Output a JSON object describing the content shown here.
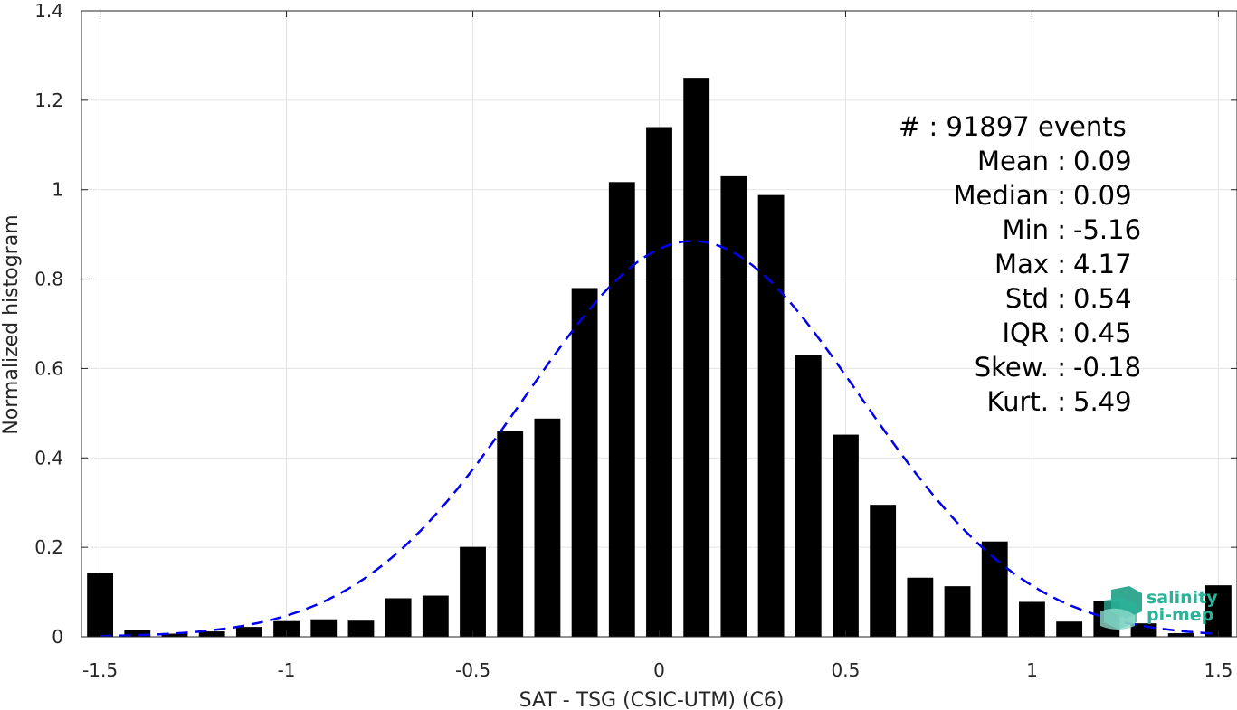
{
  "chart_data": {
    "type": "bar",
    "xlabel": "SAT - TSG (CSIC-UTM) (C6)",
    "ylabel": "Normalized histogram",
    "xlim": [
      -1.55,
      1.55
    ],
    "ylim": [
      0,
      1.4
    ],
    "xticks": [
      -1.5,
      -1,
      -0.5,
      0,
      0.5,
      1,
      1.5
    ],
    "xtick_labels": [
      "-1.5",
      "-1",
      "-0.5",
      "0",
      "0.5",
      "1",
      "1.5"
    ],
    "yticks": [
      0,
      0.2,
      0.4,
      0.6,
      0.8,
      1,
      1.2,
      1.4
    ],
    "ytick_labels": [
      "0",
      "0.2",
      "0.4",
      "0.6",
      "0.8",
      "1",
      "1.2",
      "1.4"
    ],
    "grid": true,
    "bar_width": 0.07,
    "bar_color": "#000000",
    "x": [
      -1.5,
      -1.4,
      -1.3,
      -1.2,
      -1.1,
      -1.0,
      -0.9,
      -0.8,
      -0.7,
      -0.6,
      -0.5,
      -0.4,
      -0.3,
      -0.2,
      -0.1,
      0.0,
      0.1,
      0.2,
      0.3,
      0.4,
      0.5,
      0.6,
      0.7,
      0.8,
      0.9,
      1.0,
      1.1,
      1.2,
      1.3,
      1.4,
      1.5
    ],
    "values": [
      0.142,
      0.015,
      0.007,
      0.012,
      0.022,
      0.035,
      0.039,
      0.036,
      0.086,
      0.092,
      0.201,
      0.46,
      0.488,
      0.78,
      1.017,
      1.14,
      1.25,
      1.03,
      0.988,
      0.63,
      0.452,
      0.295,
      0.132,
      0.113,
      0.213,
      0.078,
      0.034,
      0.08,
      0.03,
      0.008,
      0.115
    ],
    "fit": {
      "style": "dashed",
      "color": "#0000ee",
      "mean": 0.09,
      "std": 0.45,
      "peak": 0.885,
      "x_range": [
        -1.5,
        1.5
      ]
    },
    "stats": [
      {
        "label": "#  :",
        "value": "91897 events"
      },
      {
        "label": "Mean :",
        "value": "0.09"
      },
      {
        "label": "Median :",
        "value": "0.09"
      },
      {
        "label": "Min :",
        "value": "-5.16"
      },
      {
        "label": "Max :",
        "value": "4.17"
      },
      {
        "label": "Std :",
        "value": "0.54"
      },
      {
        "label": "IQR :",
        "value": "0.45"
      },
      {
        "label": "Skew. :",
        "value": "-0.18"
      },
      {
        "label": "Kurt. :",
        "value": "5.49"
      }
    ]
  },
  "logo": {
    "line1": "salinity",
    "line2": "pi-mep",
    "color": "#2bb39a"
  }
}
